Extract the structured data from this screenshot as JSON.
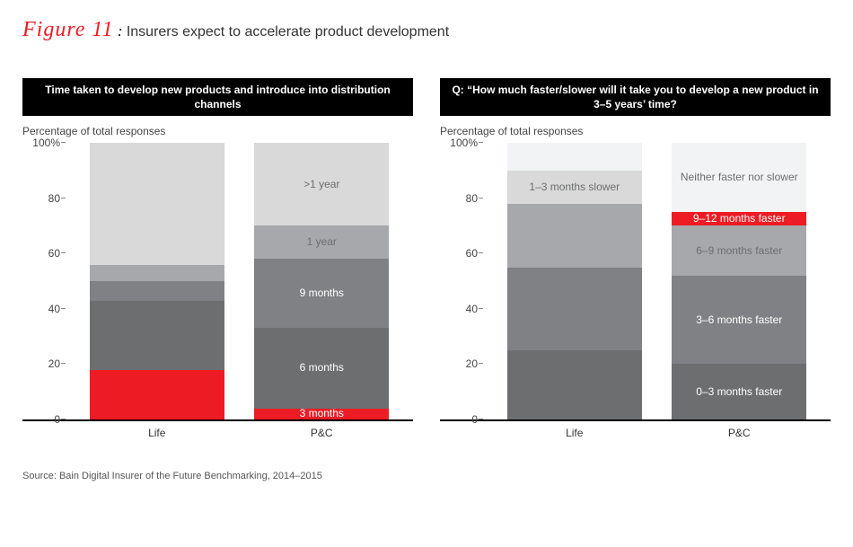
{
  "figure": {
    "label": "Figure 11",
    "colon": " : ",
    "description": "Insurers expect to accelerate product development"
  },
  "panels": [
    {
      "header": "Time taken to develop new products and introduce into distribution channels",
      "ylabel": "Percentage of total responses",
      "ymax": 100,
      "ytick_step": 20,
      "ytick_suffix_top": "%",
      "categories": [
        "Life",
        "P&C"
      ],
      "bars": [
        {
          "segments": [
            {
              "value": 18,
              "color": "#ed1c24",
              "label": "",
              "label_color": "#ffffff"
            },
            {
              "value": 25,
              "color": "#6d6e70",
              "label": "",
              "label_color": "#ffffff"
            },
            {
              "value": 7,
              "color": "#808184",
              "label": "",
              "label_color": "#333333"
            },
            {
              "value": 6,
              "color": "#a6a8ab",
              "label": "",
              "label_color": "#333333"
            },
            {
              "value": 44,
              "color": "#d9d9d9",
              "label": "",
              "label_color": "#6d6e70"
            }
          ]
        },
        {
          "segments": [
            {
              "value": 4,
              "color": "#ed1c24",
              "label": "3 months",
              "label_color": "#ffffff"
            },
            {
              "value": 29,
              "color": "#6d6e70",
              "label": "6 months",
              "label_color": "#ffffff"
            },
            {
              "value": 25,
              "color": "#808184",
              "label": "9 months",
              "label_color": "#ffffff"
            },
            {
              "value": 12,
              "color": "#a6a8ab",
              "label": "1 year",
              "label_color": "#6d6e70"
            },
            {
              "value": 30,
              "color": "#d9d9d9",
              "label": ">1 year",
              "label_color": "#6d6e70"
            }
          ]
        }
      ]
    },
    {
      "header": "Q: “How much faster/slower will it take you to develop a new product in 3–5 years’ time?",
      "ylabel": "Percentage of total responses",
      "ymax": 100,
      "ytick_step": 20,
      "ytick_suffix_top": "%",
      "categories": [
        "Life",
        "P&C"
      ],
      "bars": [
        {
          "segments": [
            {
              "value": 25,
              "color": "#6d6e70",
              "label": "",
              "label_color": "#ffffff"
            },
            {
              "value": 30,
              "color": "#808184",
              "label": "",
              "label_color": "#ffffff"
            },
            {
              "value": 23,
              "color": "#a6a8ab",
              "label": "",
              "label_color": "#6d6e70"
            },
            {
              "value": 12,
              "color": "#d9d9d9",
              "label": "1–3 months slower",
              "label_color": "#6d6e70"
            },
            {
              "value": 10,
              "color": "#f2f3f4",
              "label": "",
              "label_color": "#6d6e70"
            }
          ]
        },
        {
          "segments": [
            {
              "value": 20,
              "color": "#6d6e70",
              "label": "0–3 months faster",
              "label_color": "#ffffff"
            },
            {
              "value": 32,
              "color": "#808184",
              "label": "3–6 months faster",
              "label_color": "#ffffff"
            },
            {
              "value": 18,
              "color": "#a6a8ab",
              "label": "6–9 months faster",
              "label_color": "#6d6e70"
            },
            {
              "value": 5,
              "color": "#ed1c24",
              "label": "9–12 months faster",
              "label_color": "#ffffff"
            },
            {
              "value": 25,
              "color": "#f2f3f4",
              "label": "Neither faster nor slower",
              "label_color": "#6d6e70"
            }
          ]
        }
      ]
    }
  ],
  "source": "Source: Bain Digital Insurer of the Future Benchmarking, 2014–2015"
}
